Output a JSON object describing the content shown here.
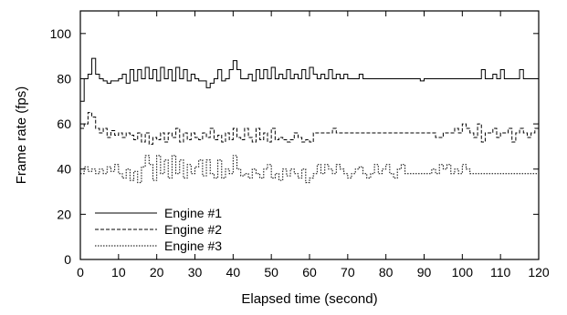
{
  "chart_data": {
    "type": "line",
    "title": "",
    "xlabel": "Elapsed time (second)",
    "ylabel": "Frame rate (fps)",
    "xlim": [
      0,
      120
    ],
    "ylim": [
      0,
      110
    ],
    "xticks": [
      "0",
      "10",
      "20",
      "30",
      "40",
      "50",
      "60",
      "70",
      "80",
      "90",
      "100",
      "110",
      "120"
    ],
    "yticks": [
      "0",
      "20",
      "40",
      "60",
      "80",
      "100"
    ],
    "grid": false,
    "legend_position": "bottom-left",
    "step": true,
    "x": [
      0,
      1,
      2,
      3,
      4,
      5,
      6,
      7,
      8,
      9,
      10,
      11,
      12,
      13,
      14,
      15,
      16,
      17,
      18,
      19,
      20,
      21,
      22,
      23,
      24,
      25,
      26,
      27,
      28,
      29,
      30,
      31,
      32,
      33,
      34,
      35,
      36,
      37,
      38,
      39,
      40,
      41,
      42,
      43,
      44,
      45,
      46,
      47,
      48,
      49,
      50,
      51,
      52,
      53,
      54,
      55,
      56,
      57,
      58,
      59,
      60,
      61,
      62,
      63,
      64,
      65,
      66,
      67,
      68,
      69,
      70,
      71,
      72,
      73,
      74,
      75,
      76,
      77,
      78,
      79,
      80,
      81,
      82,
      83,
      84,
      85,
      86,
      87,
      88,
      89,
      90,
      91,
      92,
      93,
      94,
      95,
      96,
      97,
      98,
      99,
      100,
      101,
      102,
      103,
      104,
      105,
      106,
      107,
      108,
      109,
      110,
      111,
      112,
      113,
      114,
      115,
      116,
      117,
      118,
      119,
      120
    ],
    "series": [
      {
        "name": "Engine #1",
        "dash": "solid",
        "values": [
          70,
          80,
          82,
          89,
          82,
          80,
          79,
          78,
          79,
          79,
          80,
          82,
          78,
          84,
          79,
          84,
          80,
          85,
          80,
          84,
          79,
          85,
          80,
          84,
          79,
          85,
          80,
          84,
          79,
          82,
          80,
          79,
          79,
          76,
          78,
          80,
          84,
          79,
          80,
          84,
          88,
          84,
          80,
          80,
          82,
          79,
          84,
          80,
          84,
          80,
          85,
          80,
          82,
          80,
          84,
          80,
          82,
          80,
          84,
          80,
          85,
          82,
          80,
          82,
          80,
          84,
          80,
          82,
          80,
          82,
          80,
          80,
          80,
          82,
          80,
          80,
          80,
          80,
          80,
          80,
          80,
          80,
          80,
          80,
          80,
          80,
          80,
          80,
          80,
          79,
          80,
          80,
          80,
          80,
          80,
          80,
          80,
          80,
          80,
          80,
          80,
          80,
          80,
          80,
          80,
          84,
          80,
          80,
          82,
          80,
          84,
          80,
          80,
          80,
          80,
          84,
          80,
          80,
          80,
          80,
          80
        ]
      },
      {
        "name": "Engine #2",
        "dash": "dashed",
        "values": [
          58,
          60,
          65,
          63,
          58,
          56,
          58,
          54,
          57,
          55,
          56,
          54,
          56,
          55,
          53,
          56,
          52,
          56,
          51,
          54,
          53,
          56,
          52,
          56,
          54,
          58,
          52,
          56,
          53,
          56,
          54,
          53,
          56,
          54,
          58,
          53,
          55,
          52,
          56,
          53,
          58,
          54,
          53,
          58,
          54,
          52,
          58,
          53,
          56,
          52,
          58,
          53,
          54,
          53,
          52,
          53,
          56,
          54,
          52,
          53,
          52,
          56,
          56,
          56,
          56,
          56,
          58,
          56,
          56,
          56,
          56,
          56,
          56,
          56,
          56,
          56,
          56,
          56,
          56,
          56,
          56,
          56,
          56,
          56,
          56,
          56,
          56,
          56,
          56,
          56,
          56,
          56,
          56,
          54,
          54,
          56,
          56,
          56,
          58,
          56,
          60,
          58,
          56,
          54,
          60,
          52,
          56,
          56,
          58,
          54,
          56,
          56,
          58,
          52,
          56,
          58,
          56,
          54,
          56,
          58,
          53
        ]
      },
      {
        "name": "Engine #3",
        "dash": "dotted",
        "values": [
          38,
          41,
          39,
          40,
          38,
          40,
          38,
          41,
          39,
          42,
          38,
          36,
          40,
          35,
          39,
          34,
          41,
          46,
          42,
          35,
          46,
          38,
          44,
          36,
          46,
          38,
          44,
          36,
          42,
          38,
          41,
          44,
          37,
          44,
          38,
          36,
          44,
          36,
          40,
          38,
          46,
          40,
          37,
          38,
          36,
          40,
          38,
          36,
          40,
          42,
          36,
          38,
          35,
          40,
          37,
          40,
          38,
          36,
          40,
          34,
          36,
          38,
          42,
          38,
          42,
          40,
          38,
          42,
          40,
          38,
          36,
          38,
          40,
          41,
          38,
          36,
          38,
          42,
          38,
          40,
          42,
          38,
          36,
          40,
          42,
          38,
          38,
          38,
          38,
          38,
          38,
          38,
          40,
          38,
          42,
          40,
          42,
          38,
          40,
          38,
          42,
          40,
          38,
          38,
          38,
          38,
          38,
          38,
          38,
          38,
          38,
          38,
          38,
          38,
          38,
          38,
          38,
          38,
          38,
          38,
          38
        ]
      }
    ]
  }
}
